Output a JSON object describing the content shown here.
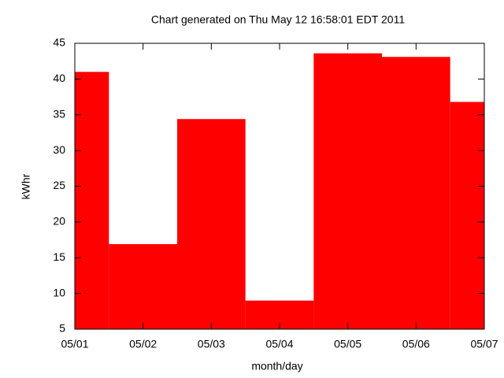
{
  "chart_data": {
    "type": "step",
    "title": "Chart generated on Thu May 12 16:58:01 EDT 2011",
    "x_label": "month/day",
    "y_label": "kWhr",
    "categories": [
      "05/01",
      "05/02",
      "05/03",
      "05/04",
      "05/05",
      "05/06",
      "05/07"
    ],
    "values": [
      41.0,
      16.9,
      34.4,
      9.0,
      43.6,
      43.1,
      36.8
    ],
    "color": "#ff0000",
    "ylim": [
      5,
      45
    ],
    "yticks": [
      5,
      10,
      15,
      20,
      25,
      30,
      35,
      40,
      45
    ],
    "grid": false
  }
}
